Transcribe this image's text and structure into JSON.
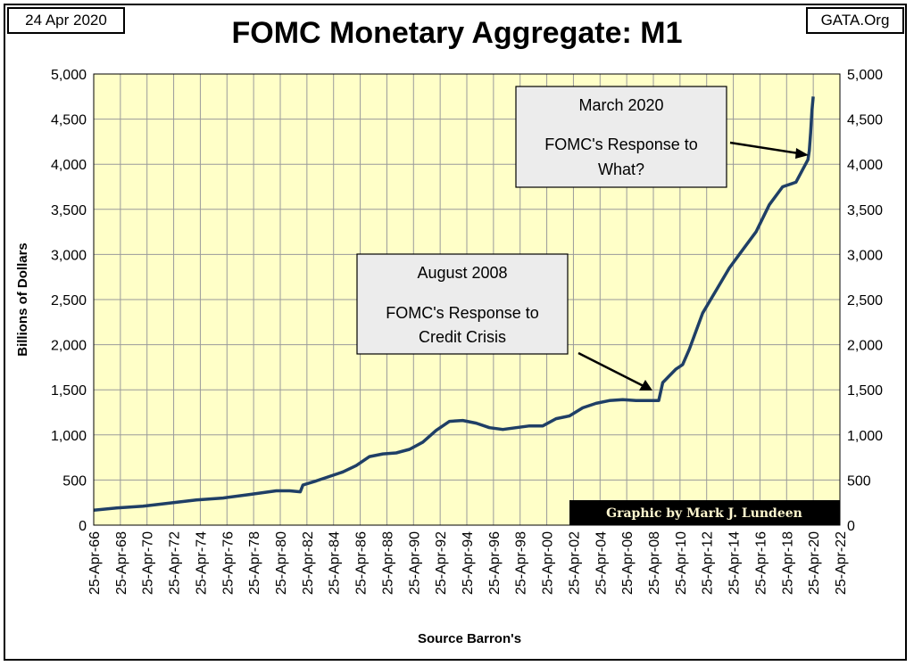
{
  "header": {
    "date": "24 Apr 2020",
    "source_site": "GATA.Org"
  },
  "chart_data": {
    "type": "line",
    "title": "FOMC Monetary Aggregate: M1",
    "ylabel": "Billions of Dollars",
    "xlabel": "Source Barron's",
    "ylim": [
      0,
      5000
    ],
    "y_ticks": [
      "0",
      "500",
      "1,000",
      "1,500",
      "2,000",
      "2,500",
      "3,000",
      "3,500",
      "4,000",
      "4,500",
      "5,000"
    ],
    "y_tick_values": [
      0,
      500,
      1000,
      1500,
      2000,
      2500,
      3000,
      3500,
      4000,
      4500,
      5000
    ],
    "xlim": [
      "1966-04-25",
      "2022-04-25"
    ],
    "x_ticks": [
      "25-Apr-66",
      "25-Apr-68",
      "25-Apr-70",
      "25-Apr-72",
      "25-Apr-74",
      "25-Apr-76",
      "25-Apr-78",
      "25-Apr-80",
      "25-Apr-82",
      "25-Apr-84",
      "25-Apr-86",
      "25-Apr-88",
      "25-Apr-90",
      "25-Apr-92",
      "25-Apr-94",
      "25-Apr-96",
      "25-Apr-98",
      "25-Apr-00",
      "25-Apr-02",
      "25-Apr-04",
      "25-Apr-06",
      "25-Apr-08",
      "25-Apr-10",
      "25-Apr-12",
      "25-Apr-14",
      "25-Apr-16",
      "25-Apr-18",
      "25-Apr-20",
      "25-Apr-22"
    ],
    "x_tick_years": [
      1966,
      1968,
      1970,
      1972,
      1974,
      1976,
      1978,
      1980,
      1982,
      1984,
      1986,
      1988,
      1990,
      1992,
      1994,
      1996,
      1998,
      2000,
      2002,
      2004,
      2006,
      2008,
      2010,
      2012,
      2014,
      2016,
      2018,
      2020,
      2022
    ],
    "grid": true,
    "plot_background": "#ffffc8",
    "line_color": "#1f3f66",
    "series": [
      {
        "x": [
          1966.3,
          1968,
          1970,
          1972,
          1974,
          1976,
          1978,
          1980,
          1981.0,
          1981.8,
          1982.0,
          1983,
          1984,
          1985,
          1986,
          1987,
          1988,
          1989,
          1990,
          1991,
          1992,
          1993,
          1994,
          1995,
          1996,
          1997,
          1998,
          1999,
          2000,
          2001,
          2002,
          2003,
          2004,
          2005,
          2006,
          2007,
          2008,
          2008.7,
          2009,
          2010,
          2010.3,
          2010.5,
          2011,
          2012,
          2013,
          2014,
          2015,
          2016,
          2017,
          2018,
          2019,
          2019.9,
          2020.0,
          2020.1,
          2020.2,
          2020.3
        ],
        "y": [
          165,
          190,
          210,
          245,
          280,
          300,
          340,
          380,
          380,
          370,
          445,
          490,
          540,
          590,
          660,
          760,
          790,
          800,
          840,
          920,
          1050,
          1150,
          1160,
          1130,
          1080,
          1060,
          1080,
          1100,
          1100,
          1180,
          1210,
          1300,
          1350,
          1380,
          1390,
          1380,
          1380,
          1380,
          1580,
          1730,
          1760,
          1780,
          1950,
          2350,
          2600,
          2850,
          3050,
          3250,
          3550,
          3750,
          3800,
          4050,
          4150,
          4350,
          4600,
          4750
        ]
      }
    ],
    "annotations": [
      {
        "title": "August 2008",
        "lines": [
          "FOMC's Response to",
          "Credit Crisis"
        ]
      },
      {
        "title": "March 2020",
        "lines": [
          "FOMC's Response to",
          "What?"
        ]
      }
    ],
    "credit": "Graphic by Mark J. Lundeen"
  }
}
